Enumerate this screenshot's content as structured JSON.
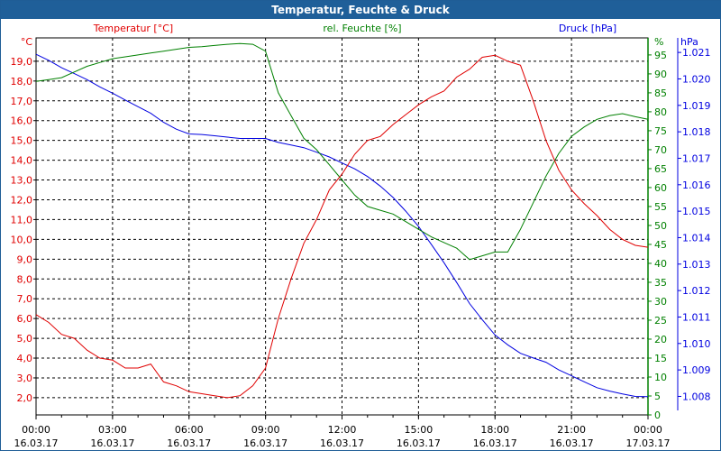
{
  "window": {
    "title": "Temperatur, Feuchte & Druck"
  },
  "chart_data": {
    "type": "line",
    "title": "Temperatur, Feuchte & Druck",
    "x_hours": [
      0,
      0.5,
      1,
      1.5,
      2,
      2.5,
      3,
      3.5,
      4,
      4.5,
      5,
      5.5,
      6,
      6.5,
      7,
      7.5,
      8,
      8.5,
      9,
      9.5,
      10,
      10.5,
      11,
      11.5,
      12,
      12.5,
      13,
      13.5,
      14,
      14.5,
      15,
      15.5,
      16,
      16.5,
      17,
      17.5,
      18,
      18.5,
      19,
      19.5,
      20,
      20.5,
      21,
      21.5,
      22,
      22.5,
      23,
      23.5,
      24
    ],
    "x_ticks": [
      {
        "time": "00:00",
        "date": "16.03.17"
      },
      {
        "time": "03:00",
        "date": "16.03.17"
      },
      {
        "time": "06:00",
        "date": "16.03.17"
      },
      {
        "time": "09:00",
        "date": "16.03.17"
      },
      {
        "time": "12:00",
        "date": "16.03.17"
      },
      {
        "time": "15:00",
        "date": "16.03.17"
      },
      {
        "time": "18:00",
        "date": "16.03.17"
      },
      {
        "time": "21:00",
        "date": "16.03.17"
      },
      {
        "time": "00:00",
        "date": "17.03.17"
      }
    ],
    "series": [
      {
        "name": "Temperatur [°C]",
        "axis": "left",
        "unit": "°C",
        "color": "#e00000",
        "ylim": [
          1.13,
          20.18
        ],
        "ticks": [
          "2,0",
          "3,0",
          "4,0",
          "5,0",
          "6,0",
          "7,0",
          "8,0",
          "9,0",
          "10,0",
          "11,0",
          "12,0",
          "13,0",
          "14,0",
          "15,0",
          "16,0",
          "17,0",
          "18,0",
          "19,0"
        ],
        "values": [
          6.2,
          5.8,
          5.2,
          5.0,
          4.4,
          4.0,
          3.9,
          3.5,
          3.5,
          3.7,
          2.8,
          2.6,
          2.3,
          2.2,
          2.1,
          2.0,
          2.1,
          2.6,
          3.5,
          6.0,
          8.0,
          9.8,
          11.0,
          12.5,
          13.3,
          14.3,
          15.0,
          15.2,
          15.8,
          16.3,
          16.8,
          17.2,
          17.5,
          18.2,
          18.6,
          19.2,
          19.3,
          19.0,
          18.8,
          17.0,
          15.0,
          13.5,
          12.5,
          11.8,
          11.2,
          10.5,
          10.0,
          9.7,
          9.6
        ]
      },
      {
        "name": "rel. Feuchte [%]",
        "axis": "right",
        "unit": "%",
        "color": "#008000",
        "ylim": [
          0,
          99.5
        ],
        "ticks": [
          "0",
          "5",
          "10",
          "15",
          "20",
          "25",
          "30",
          "35",
          "40",
          "45",
          "50",
          "55",
          "60",
          "65",
          "70",
          "75",
          "80",
          "85",
          "90",
          "95"
        ],
        "values": [
          88,
          88.5,
          89,
          90.5,
          92,
          93,
          94,
          94.5,
          95,
          95.5,
          96,
          96.5,
          97,
          97.2,
          97.5,
          97.8,
          98,
          97.8,
          96,
          85,
          79,
          73,
          70,
          66,
          62,
          58,
          55,
          54,
          53,
          51,
          49,
          47,
          45.5,
          44,
          41,
          42,
          43,
          43,
          49,
          56,
          63,
          69,
          73.5,
          76,
          78,
          79,
          79.5,
          78.7,
          78
        ]
      },
      {
        "name": "Druck [hPa]",
        "axis": "right-outer",
        "unit": "hPa",
        "color": "#0000e0",
        "ylim": [
          1007.3,
          1021.55
        ],
        "ticks": [
          "1.008",
          "1.009",
          "1.010",
          "1.011",
          "1.012",
          "1.013",
          "1.014",
          "1.015",
          "1.016",
          "1.017",
          "1.018",
          "1.019",
          "1.020",
          "1.021"
        ],
        "values": [
          1020.93,
          1020.7,
          1020.42,
          1020.2,
          1019.97,
          1019.7,
          1019.46,
          1019.2,
          1018.95,
          1018.7,
          1018.36,
          1018.1,
          1017.92,
          1017.9,
          1017.85,
          1017.8,
          1017.75,
          1017.75,
          1017.75,
          1017.6,
          1017.5,
          1017.4,
          1017.23,
          1017.05,
          1016.82,
          1016.6,
          1016.31,
          1015.95,
          1015.52,
          1015.0,
          1014.42,
          1013.75,
          1013.05,
          1012.3,
          1011.51,
          1010.9,
          1010.32,
          1009.95,
          1009.63,
          1009.45,
          1009.29,
          1009.0,
          1008.78,
          1008.55,
          1008.33,
          1008.2,
          1008.09,
          1008.0,
          1007.99
        ]
      }
    ],
    "grid": true
  }
}
